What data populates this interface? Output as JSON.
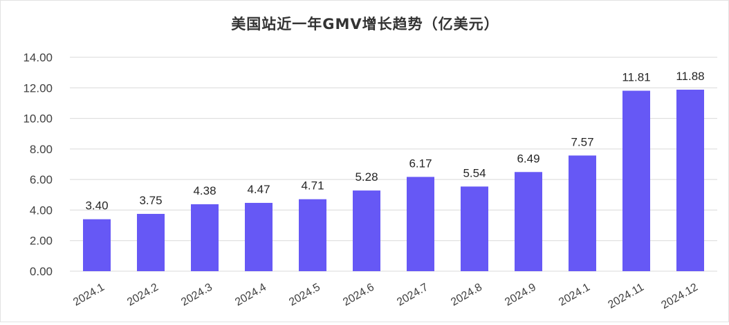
{
  "chart_data": {
    "type": "bar",
    "title": "美国站近一年GMV增长趋势（亿美元）",
    "xlabel": "",
    "ylabel": "",
    "categories": [
      "2024.1",
      "2024.2",
      "2024.3",
      "2024.4",
      "2024.5",
      "2024.6",
      "2024.7",
      "2024.8",
      "2024.9",
      "2024.1",
      "2024.11",
      "2024.12"
    ],
    "values": [
      3.4,
      3.75,
      4.38,
      4.47,
      4.71,
      5.28,
      6.17,
      5.54,
      6.49,
      7.57,
      11.81,
      11.88
    ],
    "value_labels": [
      "3.40",
      "3.75",
      "4.38",
      "4.47",
      "4.71",
      "5.28",
      "6.17",
      "5.54",
      "6.49",
      "7.57",
      "11.81",
      "11.88"
    ],
    "ylim": [
      0,
      14
    ],
    "yticks": [
      "0.00",
      "2.00",
      "4.00",
      "6.00",
      "8.00",
      "10.00",
      "12.00",
      "14.00"
    ],
    "ytick_values": [
      0,
      2,
      4,
      6,
      8,
      10,
      12,
      14
    ],
    "grid": "horizontal",
    "legend": "none",
    "colors": {
      "bar": "#6658f5",
      "text": "#404040",
      "grid": "#d9d9d9"
    }
  }
}
